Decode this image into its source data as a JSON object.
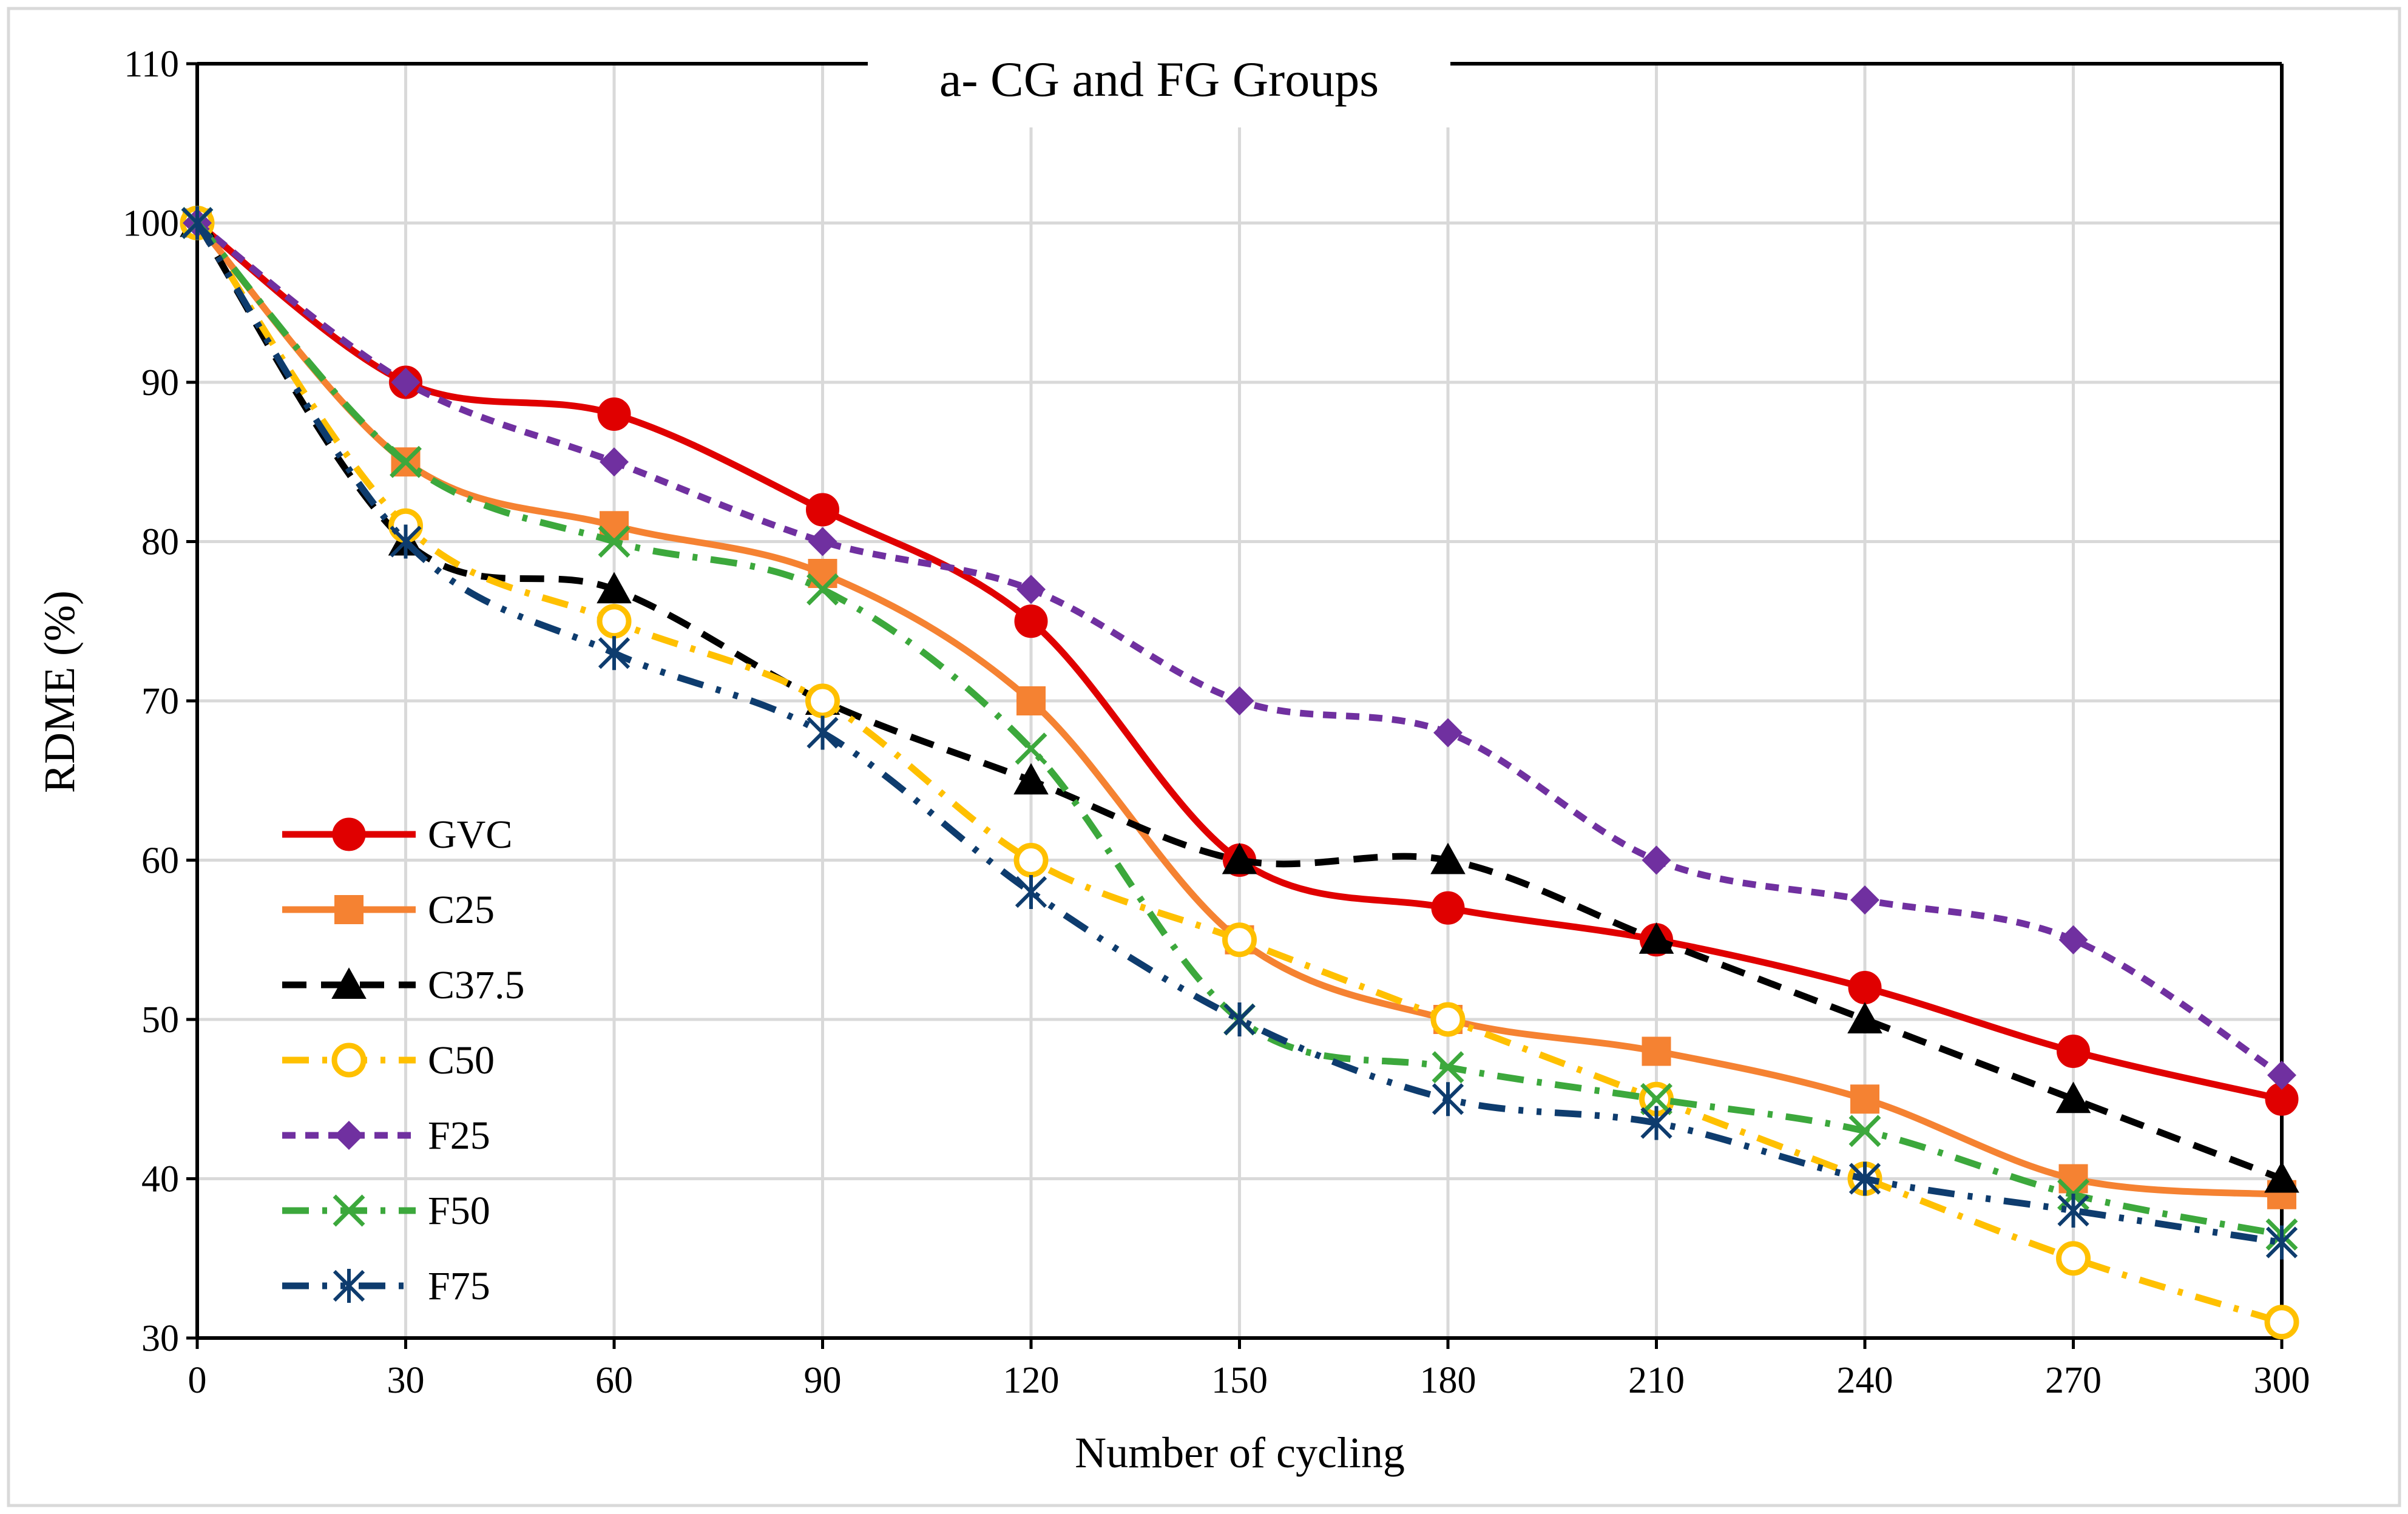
{
  "chart_data": {
    "type": "line",
    "title": "a- CG and FG Groups",
    "xlabel": "Number of cycling",
    "ylabel": "RDME  (%)",
    "x": [
      0,
      30,
      60,
      90,
      120,
      150,
      180,
      210,
      240,
      270,
      300
    ],
    "xlim": [
      0,
      300
    ],
    "ylim": [
      30,
      110
    ],
    "yticks": [
      30,
      40,
      50,
      60,
      70,
      80,
      90,
      100,
      110
    ],
    "grid": true,
    "legend_position": "left",
    "series": [
      {
        "name": "GVC",
        "color": "#e00000",
        "dash": "solid",
        "marker": "circle-filled",
        "values": [
          100,
          90,
          88,
          82,
          75,
          60,
          57,
          55,
          52,
          48,
          45
        ]
      },
      {
        "name": "C25",
        "color": "#f58232",
        "dash": "solid",
        "marker": "square",
        "values": [
          100,
          85,
          81,
          78,
          70,
          55,
          50,
          48,
          45,
          40,
          39
        ]
      },
      {
        "name": "C37.5",
        "color": "#000000",
        "dash": "dash",
        "marker": "triangle",
        "values": [
          100,
          80,
          77,
          70,
          65,
          60,
          60,
          55,
          50,
          45,
          40
        ]
      },
      {
        "name": "C50",
        "color": "#ffc000",
        "dash": "dashdot",
        "marker": "circle-open",
        "values": [
          100,
          81,
          75,
          70,
          60,
          55,
          50,
          45,
          40,
          35,
          31
        ]
      },
      {
        "name": "F25",
        "color": "#7030a0",
        "dash": "shortdash",
        "marker": "diamond",
        "values": [
          100,
          90,
          85,
          80,
          77,
          70,
          68,
          60,
          57.5,
          55,
          46.5
        ]
      },
      {
        "name": "F50",
        "color": "#3ca83c",
        "dash": "dashdot",
        "marker": "x",
        "values": [
          100,
          85,
          80,
          77,
          67,
          50,
          47,
          45,
          43,
          39,
          36.5
        ]
      },
      {
        "name": "F75",
        "color": "#0e3c6e",
        "dash": "dashdotdot",
        "marker": "asterisk",
        "values": [
          100,
          80,
          73,
          68,
          58,
          50,
          45,
          43.5,
          40,
          38,
          36
        ]
      }
    ]
  }
}
